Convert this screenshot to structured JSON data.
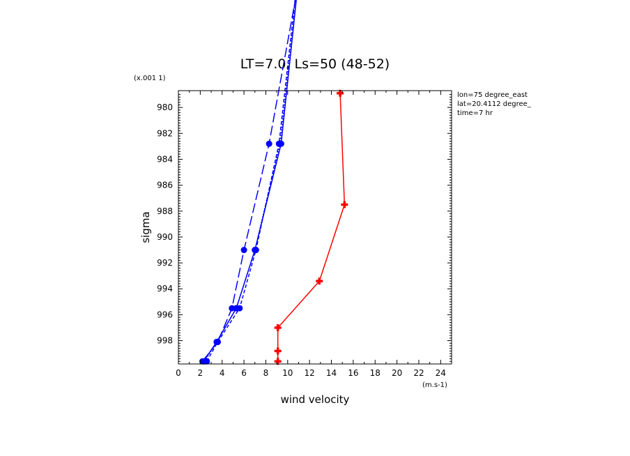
{
  "chart_data": {
    "type": "line",
    "title": "LT=7.0, Ls=50 (48-52)",
    "xlabel": "wind velocity",
    "ylabel": "sigma",
    "x_units": "(m.s-1)",
    "y_scale_label": "(x.001 1)",
    "xlim": [
      0,
      25
    ],
    "ylim": [
      999.8,
      978.7
    ],
    "x_ticks": [
      "0",
      "2",
      "4",
      "6",
      "8",
      "10",
      "12",
      "14",
      "16",
      "18",
      "20",
      "22",
      "24"
    ],
    "y_ticks": [
      "980",
      "982",
      "984",
      "986",
      "988",
      "990",
      "992",
      "994",
      "996",
      "998"
    ],
    "annotations": [
      "lon=75 degree_east",
      "lat=20.4112 degree_",
      "time=7 hr"
    ],
    "colors": {
      "blue": "#0000ff",
      "red": "#ff0000",
      "axis": "#000000"
    },
    "series": [
      {
        "color": "#0000ff",
        "dash": "solid",
        "marker": "circle",
        "x": [
          2.3,
          3.5,
          5.3,
          7.0,
          9.4,
          11.0
        ],
        "y": [
          999.6,
          998.1,
          995.5,
          991.0,
          982.8,
          970.0
        ]
      },
      {
        "color": "#0000ff",
        "dash": "long-dash",
        "marker": "circle",
        "x": [
          2.2,
          3.6,
          4.9,
          6.0,
          8.3,
          11.5
        ],
        "y": [
          999.6,
          998.1,
          995.5,
          991.0,
          982.8,
          968.0
        ]
      },
      {
        "color": "#0000ff",
        "dash": "short-dash",
        "marker": "circle",
        "x": [
          2.6,
          3.6,
          5.6,
          7.1,
          9.2,
          10.9
        ],
        "y": [
          999.6,
          998.1,
          995.5,
          991.0,
          982.8,
          970.0
        ]
      },
      {
        "color": "#0000ff",
        "dash": "dotted",
        "marker": "circle",
        "x": [
          2.4,
          3.5,
          5.3,
          7.0,
          9.3,
          11.0
        ],
        "y": [
          999.6,
          998.1,
          995.5,
          991.0,
          982.8,
          970.0
        ]
      },
      {
        "color": "#ff0000",
        "dash": "solid",
        "marker": "cross",
        "x": [
          9.1,
          9.1,
          9.1,
          12.9,
          15.2,
          14.8
        ],
        "y": [
          999.6,
          998.8,
          997.0,
          993.4,
          987.5,
          978.9
        ]
      }
    ]
  }
}
